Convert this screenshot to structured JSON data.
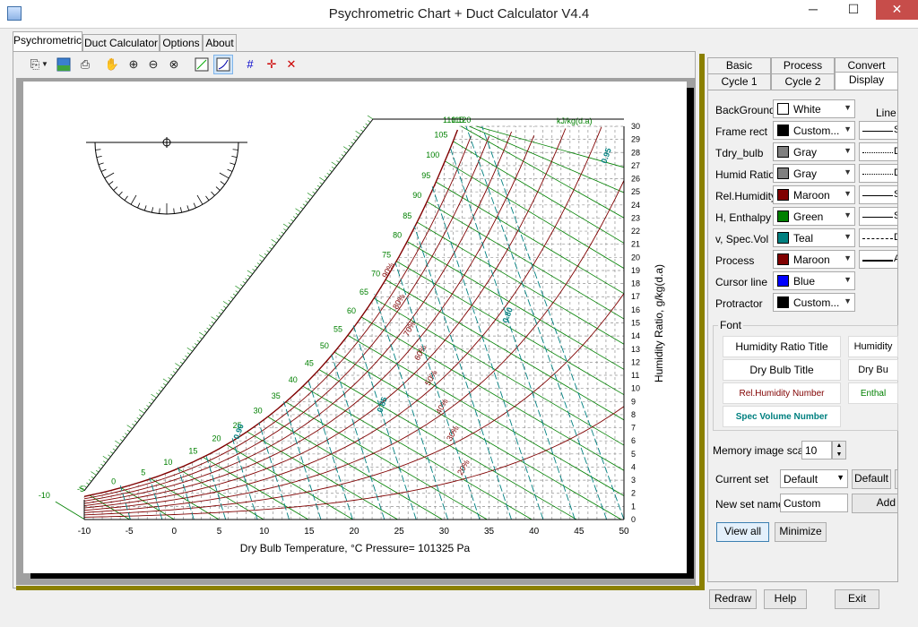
{
  "window": {
    "title": "Psychrometric Chart + Duct Calculator V4.4",
    "minimize": "─",
    "maximize": "☐",
    "close": "✕"
  },
  "main_tabs": [
    "Psychrometric",
    "Duct Calculator",
    "Options",
    "About"
  ],
  "toolbar": {
    "icons": [
      "copy-icon",
      "dropdown-icon",
      "image-icon",
      "print-icon",
      "pan-icon",
      "zoom-in-icon",
      "zoom-out-icon",
      "zoom-reset-icon",
      "protractor-icon",
      "process-icon",
      "grid-icon",
      "cursor-icon",
      "delete-icon"
    ]
  },
  "chart": {
    "x_axis_title": "Dry Bulb Temperature, °C   Pressure= 101325 Pa",
    "y_axis_title": "Humidity Ratio, g/kg(d.a)",
    "enthalpy_top_unit": "kJ/kg(d.a)"
  },
  "chart_data": {
    "type": "line",
    "x_ticks": [
      "-10",
      "-5",
      "0",
      "5",
      "10",
      "15",
      "20",
      "25",
      "30",
      "35",
      "40",
      "45",
      "50"
    ],
    "y_ticks": [
      "0",
      "1",
      "2",
      "3",
      "4",
      "5",
      "6",
      "7",
      "8",
      "9",
      "10",
      "11",
      "12",
      "13",
      "14",
      "15",
      "16",
      "17",
      "18",
      "19",
      "20",
      "21",
      "22",
      "23",
      "24",
      "25",
      "26",
      "27",
      "28",
      "29",
      "30"
    ],
    "enthalpy_labels": [
      "-10",
      "-5",
      "0",
      "5",
      "10",
      "15",
      "20",
      "25",
      "30",
      "35",
      "40",
      "45",
      "50",
      "55",
      "60",
      "65",
      "70",
      "75",
      "80",
      "85",
      "90",
      "95",
      "100",
      "105",
      "110",
      "115",
      "120"
    ],
    "rh_labels": [
      "90%",
      "80%",
      "70%",
      "60%",
      "50%",
      "40%",
      "30%",
      "20%",
      "10%"
    ],
    "volume_labels": [
      "0.90",
      "0.85",
      "0.80",
      "0.95"
    ],
    "xlim": [
      -10,
      50
    ],
    "ylim": [
      0,
      30
    ]
  },
  "right_tabs": {
    "row1": [
      "Basic",
      "Process",
      "Convert"
    ],
    "row2": [
      "Cycle 1",
      "Cycle 2",
      "Display"
    ]
  },
  "display": {
    "rows": [
      {
        "label": "BackGround",
        "value": "White",
        "color": "#ffffff"
      },
      {
        "label": "Frame rect",
        "value": "Custom...",
        "color": "#000000"
      },
      {
        "label": "Tdry_bulb",
        "value": "Gray",
        "color": "#808080"
      },
      {
        "label": "Humid Ratio",
        "value": "Gray",
        "color": "#808080"
      },
      {
        "label": "Rel.Humidity",
        "value": "Maroon",
        "color": "#800000"
      },
      {
        "label": "H, Enthalpy",
        "value": "Green",
        "color": "#008000"
      },
      {
        "label": "v, Spec.Vol",
        "value": "Teal",
        "color": "#008080"
      },
      {
        "label": "Process",
        "value": "Maroon",
        "color": "#800000"
      },
      {
        "label": "Cursor line",
        "value": "Blue",
        "color": "#0000ff"
      },
      {
        "label": "Protractor",
        "value": "Custom...",
        "color": "#000000"
      }
    ],
    "line_header": "Line",
    "line_labels": [
      "S",
      "D",
      "D",
      "S",
      "S",
      "D",
      "A"
    ],
    "font_header": "Font",
    "font_buttons": [
      "Humidity Ratio Title",
      "Humidity",
      "Dry Bulb Title",
      "Dry Bu",
      "Rel.Humidity Number",
      "Enthal",
      "Spec Volume Number"
    ],
    "memory_label": "Memory image scale",
    "memory_value": "10",
    "current_set_label": "Current set",
    "current_set_value": "Default",
    "default_button": "Default",
    "new_set_label": "New set name",
    "new_set_value": "Custom",
    "add_button": "Add",
    "view_all": "View all",
    "minimize": "Minimize"
  },
  "footer": {
    "redraw": "Redraw",
    "help": "Help",
    "exit": "Exit"
  }
}
